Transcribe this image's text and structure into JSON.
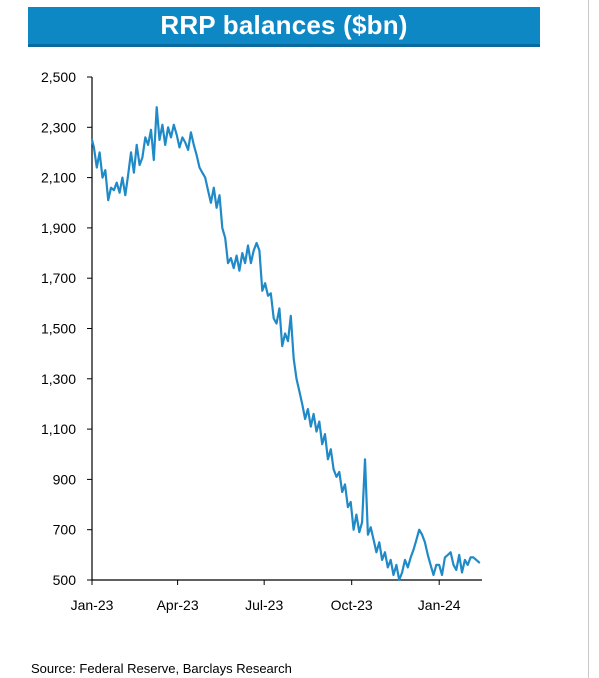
{
  "source": "Source: Federal Reserve, Barclays Research",
  "chart_data": {
    "type": "line",
    "title": "RRP balances ($bn)",
    "xlabel": "",
    "ylabel": "",
    "ylim": [
      500,
      2500
    ],
    "y_ticks": [
      500,
      700,
      900,
      1100,
      1300,
      1500,
      1700,
      1900,
      2100,
      2300,
      2500
    ],
    "y_tick_labels": [
      "500",
      "700",
      "900",
      "1,100",
      "1,300",
      "1,500",
      "1,700",
      "1,900",
      "2,100",
      "2,300",
      "2,500"
    ],
    "x_ticks": [
      "2023-01-01",
      "2023-04-01",
      "2023-07-01",
      "2023-10-01",
      "2024-01-01"
    ],
    "x_tick_labels": [
      "Jan-23",
      "Apr-23",
      "Jul-23",
      "Oct-23",
      "Jan-24"
    ],
    "grid": false,
    "legend": "none",
    "colors": {
      "title_background": "#0e88c4",
      "title_border": "#0a6aa0",
      "line": "#1f8ac7",
      "axis": "#000000"
    },
    "series": [
      {
        "x": [
          "2023-01-01",
          "2023-01-03",
          "2023-01-06",
          "2023-01-09",
          "2023-01-12",
          "2023-01-15",
          "2023-01-18",
          "2023-01-21",
          "2023-01-24",
          "2023-01-27",
          "2023-01-30",
          "2023-02-02",
          "2023-02-05",
          "2023-02-08",
          "2023-02-11",
          "2023-02-14",
          "2023-02-17",
          "2023-02-20",
          "2023-02-23",
          "2023-02-26",
          "2023-03-01",
          "2023-03-04",
          "2023-03-07",
          "2023-03-10",
          "2023-03-13",
          "2023-03-16",
          "2023-03-19",
          "2023-03-22",
          "2023-03-25",
          "2023-03-28",
          "2023-03-31",
          "2023-04-03",
          "2023-04-06",
          "2023-04-09",
          "2023-04-12",
          "2023-04-15",
          "2023-04-18",
          "2023-04-21",
          "2023-04-24",
          "2023-04-27",
          "2023-04-30",
          "2023-05-03",
          "2023-05-06",
          "2023-05-09",
          "2023-05-12",
          "2023-05-15",
          "2023-05-18",
          "2023-05-21",
          "2023-05-24",
          "2023-05-27",
          "2023-05-30",
          "2023-06-02",
          "2023-06-05",
          "2023-06-08",
          "2023-06-11",
          "2023-06-14",
          "2023-06-17",
          "2023-06-20",
          "2023-06-23",
          "2023-06-26",
          "2023-06-29",
          "2023-07-02",
          "2023-07-05",
          "2023-07-08",
          "2023-07-11",
          "2023-07-14",
          "2023-07-17",
          "2023-07-20",
          "2023-07-23",
          "2023-07-26",
          "2023-07-29",
          "2023-08-01",
          "2023-08-04",
          "2023-08-07",
          "2023-08-10",
          "2023-08-13",
          "2023-08-16",
          "2023-08-19",
          "2023-08-22",
          "2023-08-25",
          "2023-08-28",
          "2023-08-31",
          "2023-09-03",
          "2023-09-06",
          "2023-09-09",
          "2023-09-12",
          "2023-09-15",
          "2023-09-18",
          "2023-09-21",
          "2023-09-24",
          "2023-09-27",
          "2023-09-30",
          "2023-10-03",
          "2023-10-06",
          "2023-10-09",
          "2023-10-12",
          "2023-10-15",
          "2023-10-18",
          "2023-10-21",
          "2023-10-24",
          "2023-10-27",
          "2023-10-30",
          "2023-11-02",
          "2023-11-05",
          "2023-11-08",
          "2023-11-11",
          "2023-11-14",
          "2023-11-17",
          "2023-11-20",
          "2023-11-23",
          "2023-11-26",
          "2023-11-29",
          "2023-12-02",
          "2023-12-05",
          "2023-12-08",
          "2023-12-11",
          "2023-12-14",
          "2023-12-17",
          "2023-12-20",
          "2023-12-23",
          "2023-12-26",
          "2023-12-29",
          "2024-01-01",
          "2024-01-04",
          "2024-01-07",
          "2024-01-10",
          "2024-01-13",
          "2024-01-16",
          "2024-01-19",
          "2024-01-22",
          "2024-01-25",
          "2024-01-28",
          "2024-01-31",
          "2024-02-03",
          "2024-02-06",
          "2024-02-09",
          "2024-02-12"
        ],
        "values": [
          2250,
          2220,
          2140,
          2200,
          2100,
          2130,
          2010,
          2060,
          2050,
          2080,
          2040,
          2100,
          2030,
          2110,
          2200,
          2120,
          2230,
          2150,
          2180,
          2260,
          2230,
          2290,
          2170,
          2380,
          2250,
          2310,
          2230,
          2300,
          2260,
          2310,
          2270,
          2220,
          2260,
          2240,
          2210,
          2280,
          2230,
          2190,
          2140,
          2120,
          2100,
          2050,
          2000,
          2060,
          1980,
          2030,
          1900,
          1860,
          1760,
          1780,
          1740,
          1790,
          1730,
          1800,
          1760,
          1830,
          1760,
          1810,
          1840,
          1810,
          1650,
          1680,
          1630,
          1640,
          1540,
          1520,
          1580,
          1430,
          1480,
          1450,
          1550,
          1380,
          1300,
          1250,
          1200,
          1140,
          1180,
          1110,
          1160,
          1090,
          1130,
          1040,
          1080,
          980,
          1020,
          940,
          910,
          930,
          850,
          880,
          790,
          810,
          700,
          760,
          690,
          730,
          980,
          680,
          710,
          660,
          610,
          650,
          580,
          610,
          550,
          580,
          520,
          560,
          500,
          530,
          580,
          550,
          590,
          620,
          660,
          700,
          680,
          650,
          600,
          560,
          520,
          560,
          560,
          520,
          590,
          600,
          610,
          560,
          540,
          600,
          530,
          580,
          560,
          590,
          590,
          580,
          570
        ]
      }
    ]
  }
}
